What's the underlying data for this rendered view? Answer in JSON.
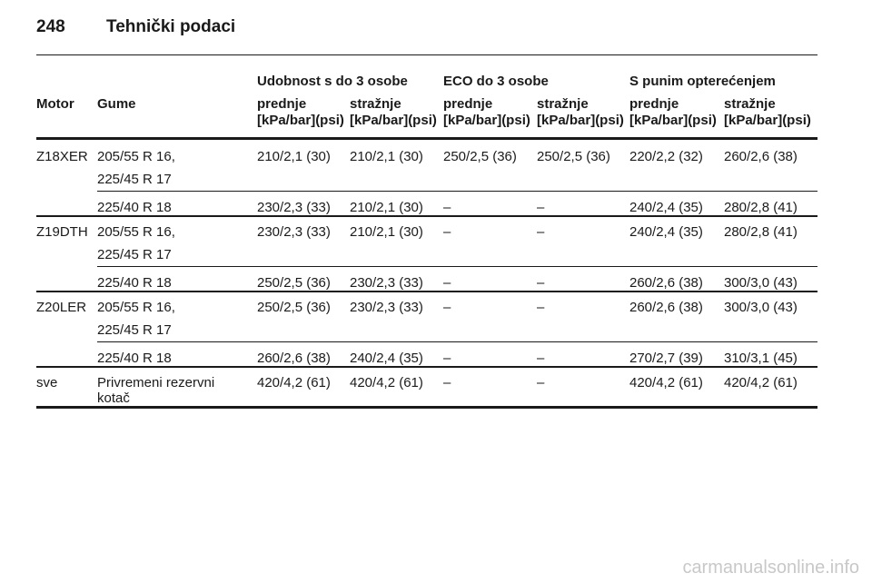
{
  "header": {
    "page_number": "248",
    "title": "Tehnički podaci"
  },
  "table": {
    "columns": [
      "Motor",
      "Gume"
    ],
    "group_headers": [
      "Udobnost s do 3 osobe",
      "ECO do 3 osobe",
      "S punim opterećenjem"
    ],
    "sub_headers": [
      "prednje",
      "stražnje",
      "prednje",
      "stražnje",
      "prednje",
      "stražnje"
    ],
    "units": [
      "[kPa/bar](psi)",
      "[kPa/bar](psi)",
      "[kPa/bar](psi)",
      "[kPa/bar](psi)",
      "[kPa/bar](psi)",
      "[kPa/bar](psi)"
    ],
    "rows": [
      {
        "motor": "Z18XER",
        "tyres": [
          "205/55 R 16,",
          "225/45 R 17"
        ],
        "values": [
          "210/2,1 (30)",
          "210/2,1 (30)",
          "250/2,5 (36)",
          "250/2,5 (36)",
          "220/2,2 (32)",
          "260/2,6 (38)"
        ]
      },
      {
        "tyres": [
          "225/40 R 18"
        ],
        "values": [
          "230/2,3 (33)",
          "210/2,1 (30)",
          "–",
          "–",
          "240/2,4 (35)",
          "280/2,8 (41)"
        ]
      },
      {
        "motor": "Z19DTH",
        "tyres": [
          "205/55 R 16,",
          "225/45 R 17"
        ],
        "values": [
          "230/2,3 (33)",
          "210/2,1 (30)",
          "–",
          "–",
          "240/2,4 (35)",
          "280/2,8 (41)"
        ]
      },
      {
        "tyres": [
          "225/40 R 18"
        ],
        "values": [
          "250/2,5 (36)",
          "230/2,3 (33)",
          "–",
          "–",
          "260/2,6 (38)",
          "300/3,0 (43)"
        ]
      },
      {
        "motor": "Z20LER",
        "tyres": [
          "205/55 R 16,",
          "225/45 R 17"
        ],
        "values": [
          "250/2,5 (36)",
          "230/2,3 (33)",
          "–",
          "–",
          "260/2,6 (38)",
          "300/3,0 (43)"
        ]
      },
      {
        "tyres": [
          "225/40 R 18"
        ],
        "values": [
          "260/2,6 (38)",
          "240/2,4 (35)",
          "–",
          "–",
          "270/2,7 (39)",
          "310/3,1 (45)"
        ]
      },
      {
        "motor": "sve",
        "tyres": [
          "Privremeni rezervni kotač"
        ],
        "values": [
          "420/4,2 (61)",
          "420/4,2 (61)",
          "–",
          "–",
          "420/4,2 (61)",
          "420/4,2 (61)"
        ]
      }
    ]
  },
  "watermark": "carmanualsonline.info"
}
